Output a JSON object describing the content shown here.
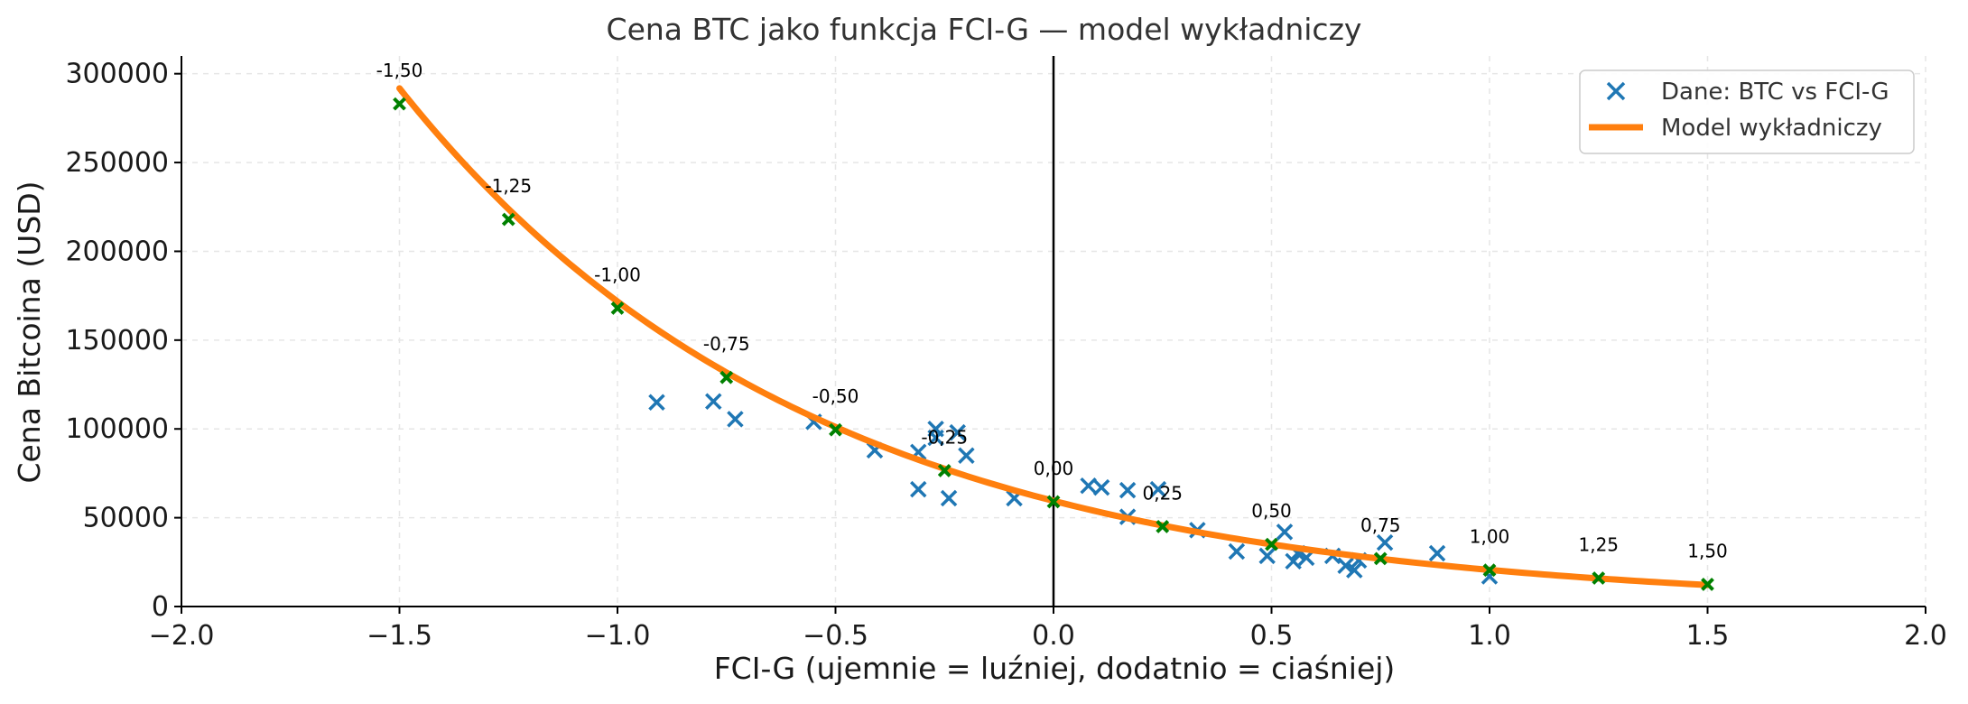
{
  "chart_data": {
    "type": "scatter",
    "title": "Cena BTC jako funkcja FCI-G — model wykładniczy",
    "xlabel": "FCI-G (ujemnie = luźniej, dodatnio = ciaśniej)",
    "ylabel": "Cena Bitcoina (USD)",
    "xlim": [
      -2.0,
      2.0
    ],
    "ylim": [
      0,
      310000
    ],
    "xticks": [
      -2.0,
      -1.5,
      -1.0,
      -0.5,
      0.0,
      0.5,
      1.0,
      1.5,
      2.0
    ],
    "xtick_labels": [
      "−2.0",
      "−1.5",
      "−1.0",
      "−0.5",
      "0.0",
      "0.5",
      "1.0",
      "1.5",
      "2.0"
    ],
    "yticks": [
      0,
      50000,
      100000,
      150000,
      200000,
      250000,
      300000
    ],
    "ytick_labels": [
      "0",
      "50000",
      "100000",
      "150000",
      "200000",
      "250000",
      "300000"
    ],
    "grid": true,
    "legend_position": "top-right",
    "colors": {
      "scatter": "#1f77b4",
      "model": "#ff7f0e",
      "markers": "#008000",
      "axis": "#000000",
      "grid": "#e6e6e6",
      "text": "#333333"
    },
    "model": {
      "name": "Model wykładniczy",
      "a": 59500,
      "b": -1.06,
      "x_range": [
        -1.5,
        1.5
      ]
    },
    "series": [
      {
        "name": "Dane: BTC vs FCI-G",
        "points": [
          [
            -0.91,
            115000
          ],
          [
            -0.78,
            115500
          ],
          [
            -0.73,
            105500
          ],
          [
            -0.55,
            104000
          ],
          [
            -0.41,
            88000
          ],
          [
            -0.31,
            87000
          ],
          [
            -0.31,
            66000
          ],
          [
            -0.27,
            100000
          ],
          [
            -0.27,
            95000
          ],
          [
            -0.24,
            61000
          ],
          [
            -0.22,
            98000
          ],
          [
            -0.2,
            85000
          ],
          [
            -0.09,
            61000
          ],
          [
            0.08,
            68000
          ],
          [
            0.11,
            67000
          ],
          [
            0.17,
            65500
          ],
          [
            0.17,
            50500
          ],
          [
            0.24,
            66000
          ],
          [
            0.33,
            43000
          ],
          [
            0.42,
            31000
          ],
          [
            0.49,
            28500
          ],
          [
            0.53,
            42000
          ],
          [
            0.55,
            25500
          ],
          [
            0.56,
            30000
          ],
          [
            0.58,
            27500
          ],
          [
            0.64,
            28500
          ],
          [
            0.67,
            23000
          ],
          [
            0.69,
            20500
          ],
          [
            0.7,
            26000
          ],
          [
            0.76,
            36000
          ],
          [
            0.88,
            30000
          ],
          [
            1.0,
            17000
          ]
        ]
      }
    ],
    "annotated_points": [
      {
        "x": -1.5,
        "y": 283000,
        "label": "-1,50"
      },
      {
        "x": -1.25,
        "y": 218000,
        "label": "-1,25"
      },
      {
        "x": -1.0,
        "y": 168000,
        "label": "-1,00"
      },
      {
        "x": -0.75,
        "y": 129000,
        "label": "-0,75"
      },
      {
        "x": -0.5,
        "y": 99500,
        "label": "-0,50"
      },
      {
        "x": -0.25,
        "y": 76500,
        "label": "-0,25"
      },
      {
        "x": 0.0,
        "y": 59000,
        "label": "0,00"
      },
      {
        "x": 0.25,
        "y": 45000,
        "label": "0,25"
      },
      {
        "x": 0.5,
        "y": 35000,
        "label": "0,50"
      },
      {
        "x": 0.75,
        "y": 27000,
        "label": "0,75"
      },
      {
        "x": 1.0,
        "y": 20500,
        "label": "1,00"
      },
      {
        "x": 1.25,
        "y": 16000,
        "label": "1,25"
      },
      {
        "x": 1.5,
        "y": 12500,
        "label": "1,50"
      }
    ],
    "legend": [
      {
        "label": "Dane: BTC vs FCI-G",
        "kind": "scatter"
      },
      {
        "label": "Model wykładniczy",
        "kind": "line"
      }
    ]
  }
}
